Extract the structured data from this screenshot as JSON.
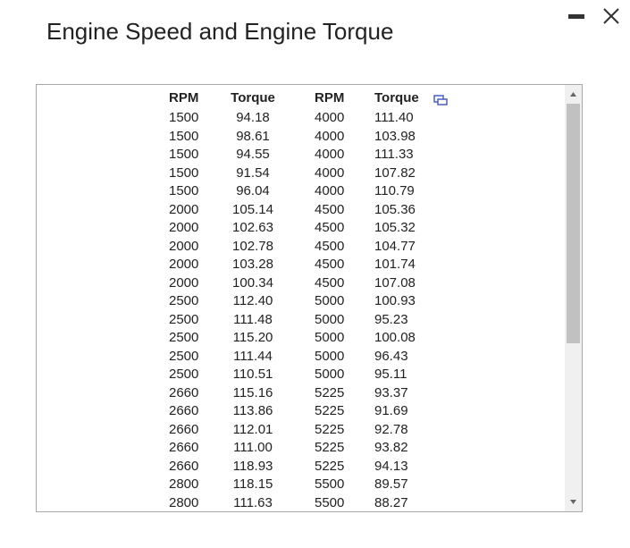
{
  "dialog": {
    "title": "Engine Speed and Engine Torque",
    "table": {
      "header": [
        "RPM",
        "Torque",
        "RPM",
        "Torque"
      ],
      "rows": [
        [
          "1500",
          "94.18",
          "4000",
          "111.40"
        ],
        [
          "1500",
          "98.61",
          "4000",
          "103.98"
        ],
        [
          "1500",
          "94.55",
          "4000",
          "111.33"
        ],
        [
          "1500",
          "91.54",
          "4000",
          "107.82"
        ],
        [
          "1500",
          "96.04",
          "4000",
          "110.79"
        ],
        [
          "2000",
          "105.14",
          "4500",
          "105.36"
        ],
        [
          "2000",
          "102.63",
          "4500",
          "105.32"
        ],
        [
          "2000",
          "102.78",
          "4500",
          "104.77"
        ],
        [
          "2000",
          "103.28",
          "4500",
          "101.74"
        ],
        [
          "2000",
          "100.34",
          "4500",
          "107.08"
        ],
        [
          "2500",
          "112.40",
          "5000",
          "100.93"
        ],
        [
          "2500",
          "111.48",
          "5000",
          "95.23"
        ],
        [
          "2500",
          "115.20",
          "5000",
          "100.08"
        ],
        [
          "2500",
          "111.44",
          "5000",
          "96.43"
        ],
        [
          "2500",
          "110.51",
          "5000",
          "95.11"
        ],
        [
          "2660",
          "115.16",
          "5225",
          "93.37"
        ],
        [
          "2660",
          "113.86",
          "5225",
          "91.69"
        ],
        [
          "2660",
          "112.01",
          "5225",
          "92.78"
        ],
        [
          "2660",
          "111.00",
          "5225",
          "93.82"
        ],
        [
          "2660",
          "118.93",
          "5225",
          "94.13"
        ],
        [
          "2800",
          "118.15",
          "5500",
          "89.57"
        ],
        [
          "2800",
          "111.63",
          "5500",
          "88.27"
        ]
      ]
    }
  }
}
